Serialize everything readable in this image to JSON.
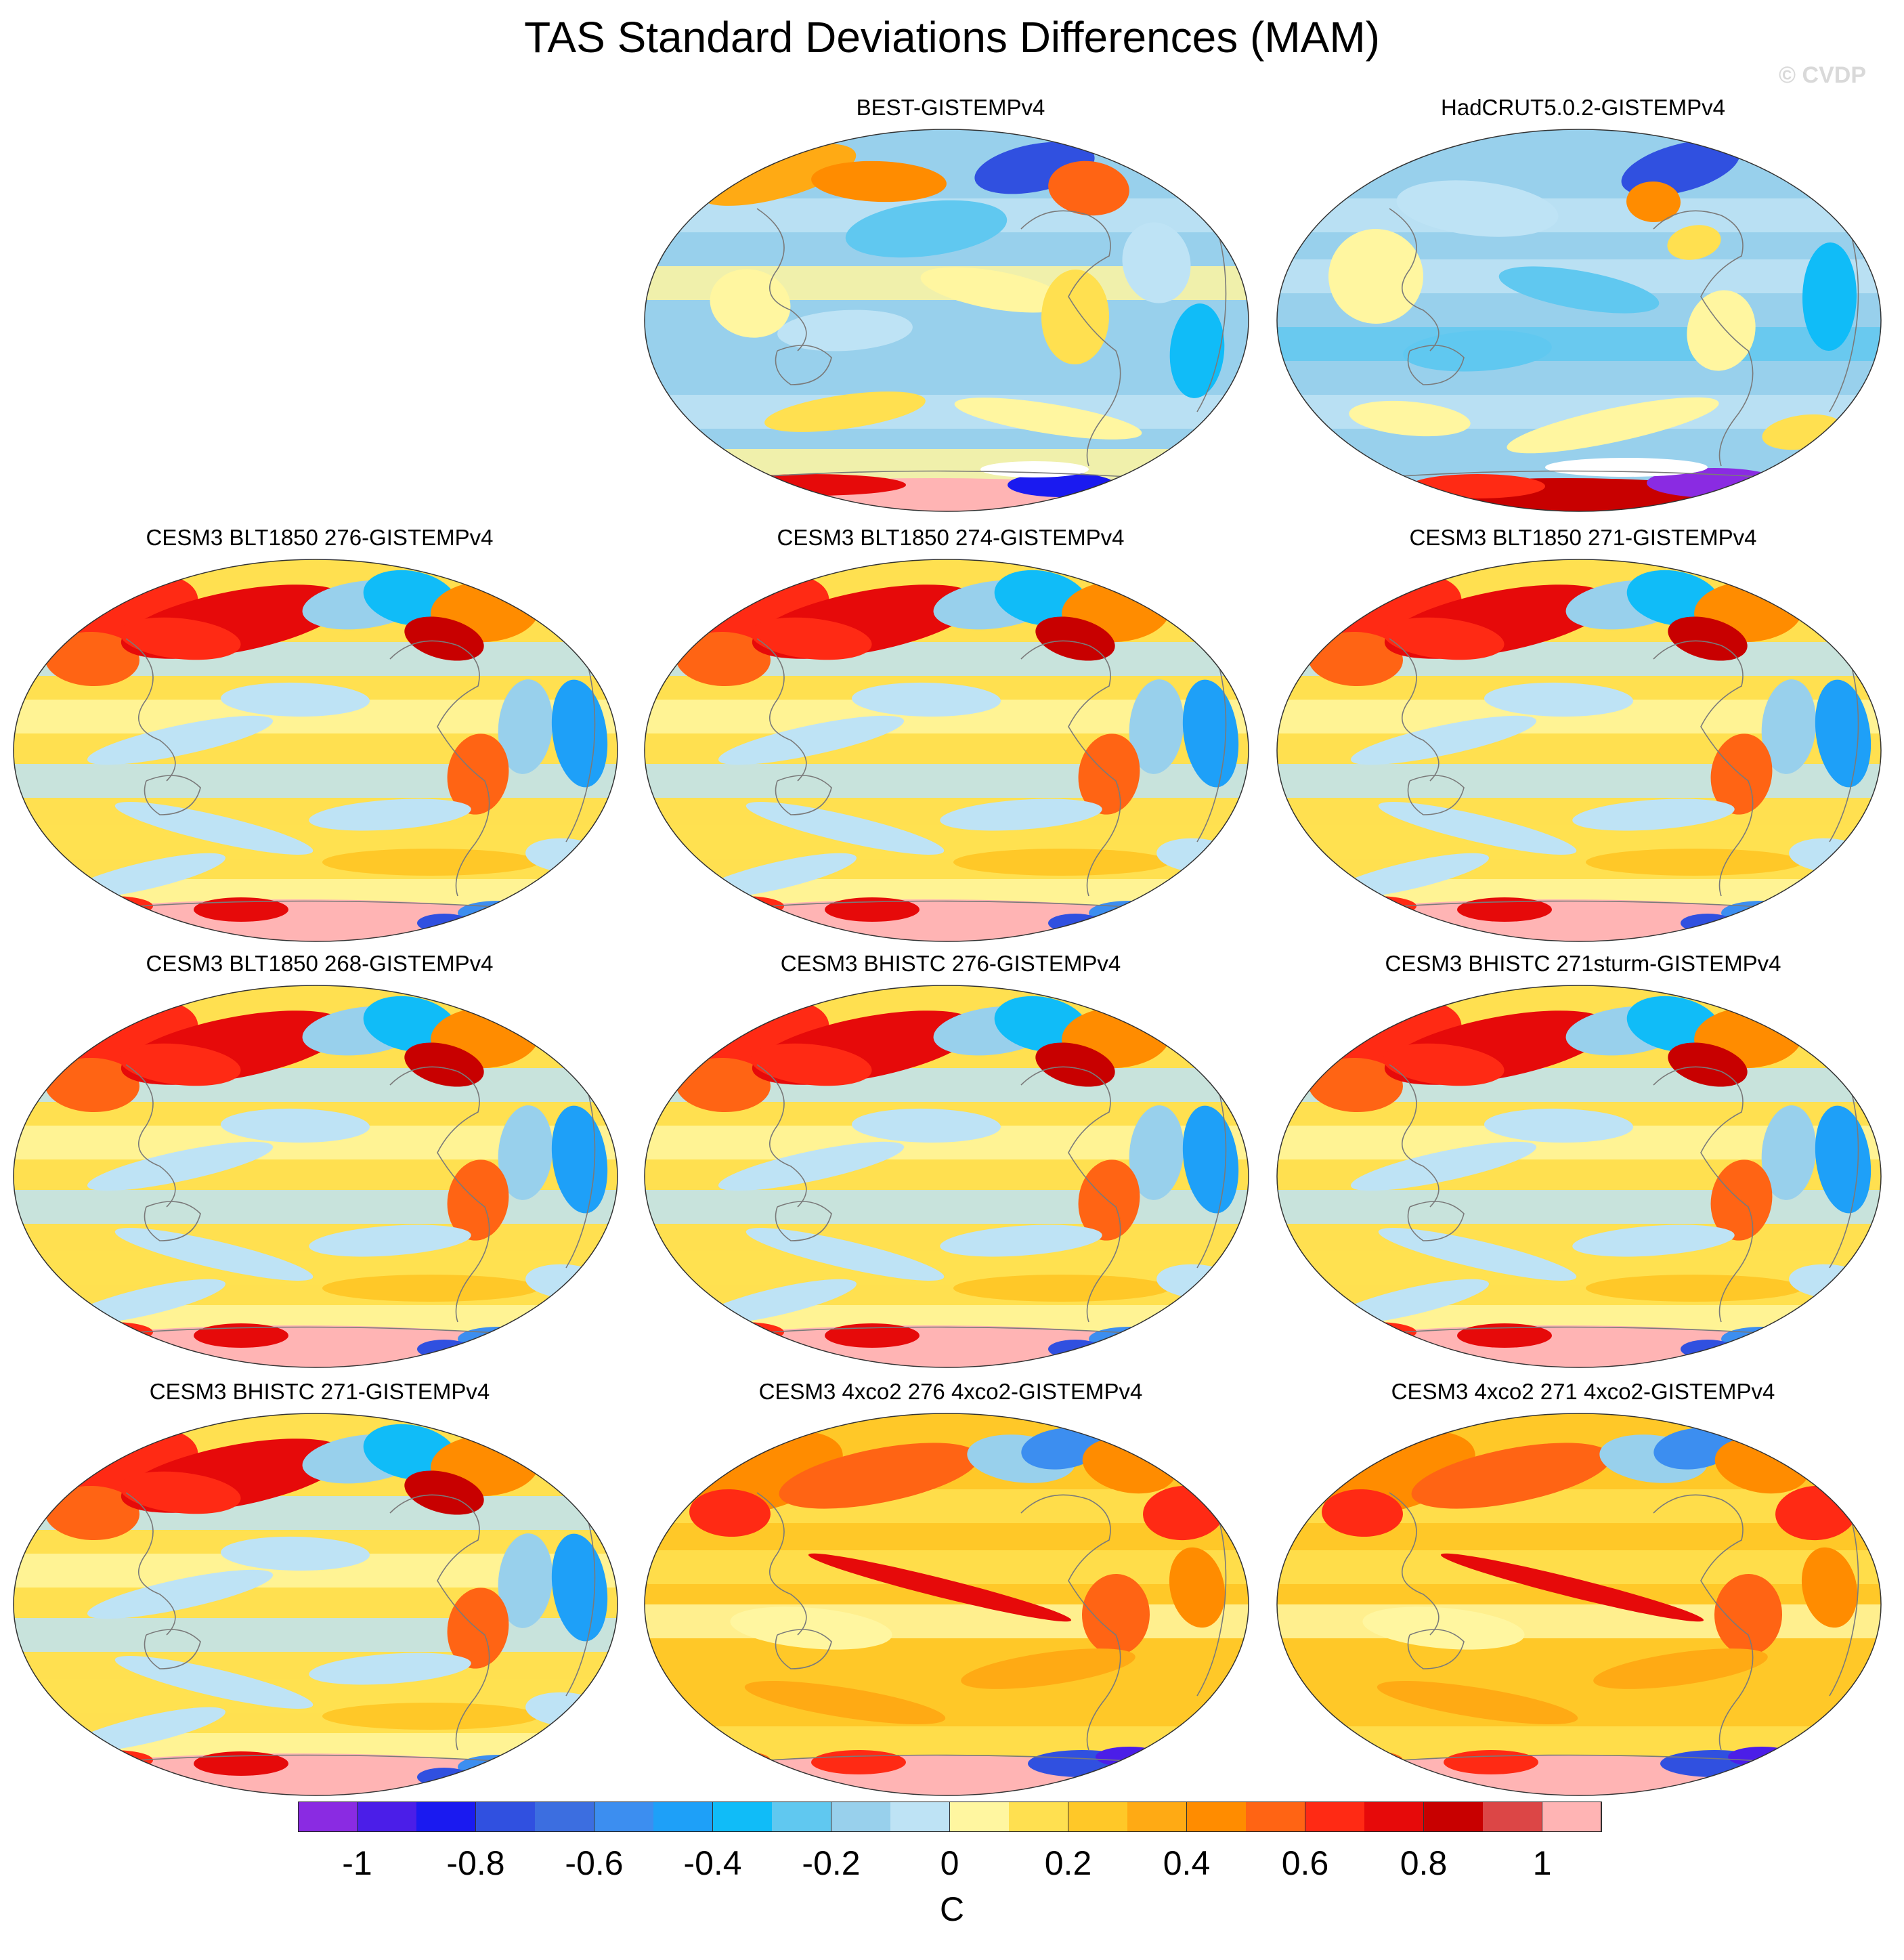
{
  "title": "TAS Standard Deviations Differences (MAM)",
  "watermark": "© CVDP",
  "panels": [
    {
      "label": "BEST-GISTEMPv4",
      "style": "obs1"
    },
    {
      "label": "HadCRUT5.0.2-GISTEMPv4",
      "style": "obs2"
    },
    {
      "label": "CESM3 BLT1850 276-GISTEMPv4",
      "style": "model"
    },
    {
      "label": "CESM3 BLT1850 274-GISTEMPv4",
      "style": "model"
    },
    {
      "label": "CESM3 BLT1850 271-GISTEMPv4",
      "style": "model"
    },
    {
      "label": "CESM3 BLT1850 268-GISTEMPv4",
      "style": "model"
    },
    {
      "label": "CESM3 BHISTC 276-GISTEMPv4",
      "style": "model"
    },
    {
      "label": "CESM3 BHISTC 271sturm-GISTEMPv4",
      "style": "model"
    },
    {
      "label": "CESM3 BHISTC 271-GISTEMPv4",
      "style": "model"
    },
    {
      "label": "CESM3 4xco2 276 4xco2-GISTEMPv4",
      "style": "warm"
    },
    {
      "label": "CESM3 4xco2 271 4xco2-GISTEMPv4",
      "style": "warm"
    }
  ],
  "colorbar": {
    "unit": "C",
    "colors": [
      "#8a2be2",
      "#4b1ee8",
      "#1a1af0",
      "#3050e0",
      "#3c6ee0",
      "#3c8ef0",
      "#1ea0f8",
      "#10bcf8",
      "#60c8f0",
      "#98d0ec",
      "#bee3f5",
      "#fff6a0",
      "#ffe050",
      "#ffc828",
      "#ffaa14",
      "#ff8c00",
      "#ff6414",
      "#ff2a14",
      "#e60a0a",
      "#c80000",
      "#dc4646",
      "#ffb4b4"
    ],
    "tick_labels": [
      "-1",
      "-0.8",
      "-0.6",
      "-0.4",
      "-0.2",
      "0",
      "0.2",
      "0.4",
      "0.6",
      "0.8",
      "1"
    ]
  }
}
